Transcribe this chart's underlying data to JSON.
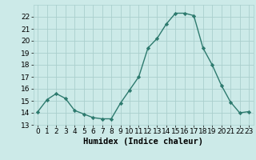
{
  "x": [
    0,
    1,
    2,
    3,
    4,
    5,
    6,
    7,
    8,
    9,
    10,
    11,
    12,
    13,
    14,
    15,
    16,
    17,
    18,
    19,
    20,
    21,
    22,
    23
  ],
  "y": [
    14.1,
    15.1,
    15.6,
    15.2,
    14.2,
    13.9,
    13.6,
    13.5,
    13.5,
    14.8,
    15.9,
    17.0,
    19.4,
    20.2,
    21.4,
    22.3,
    22.3,
    22.1,
    19.4,
    18.0,
    16.3,
    14.9,
    14.0,
    14.1
  ],
  "line_color": "#2d7a6e",
  "marker": "D",
  "marker_size": 2.2,
  "line_width": 1.0,
  "bg_color": "#cceae8",
  "grid_color": "#aacfcd",
  "xlabel": "Humidex (Indice chaleur)",
  "xlabel_fontsize": 7.5,
  "tick_fontsize": 6.5,
  "ylim": [
    13,
    23
  ],
  "xlim": [
    -0.5,
    23.5
  ],
  "yticks": [
    13,
    14,
    15,
    16,
    17,
    18,
    19,
    20,
    21,
    22
  ],
  "xticks": [
    0,
    1,
    2,
    3,
    4,
    5,
    6,
    7,
    8,
    9,
    10,
    11,
    12,
    13,
    14,
    15,
    16,
    17,
    18,
    19,
    20,
    21,
    22,
    23
  ]
}
